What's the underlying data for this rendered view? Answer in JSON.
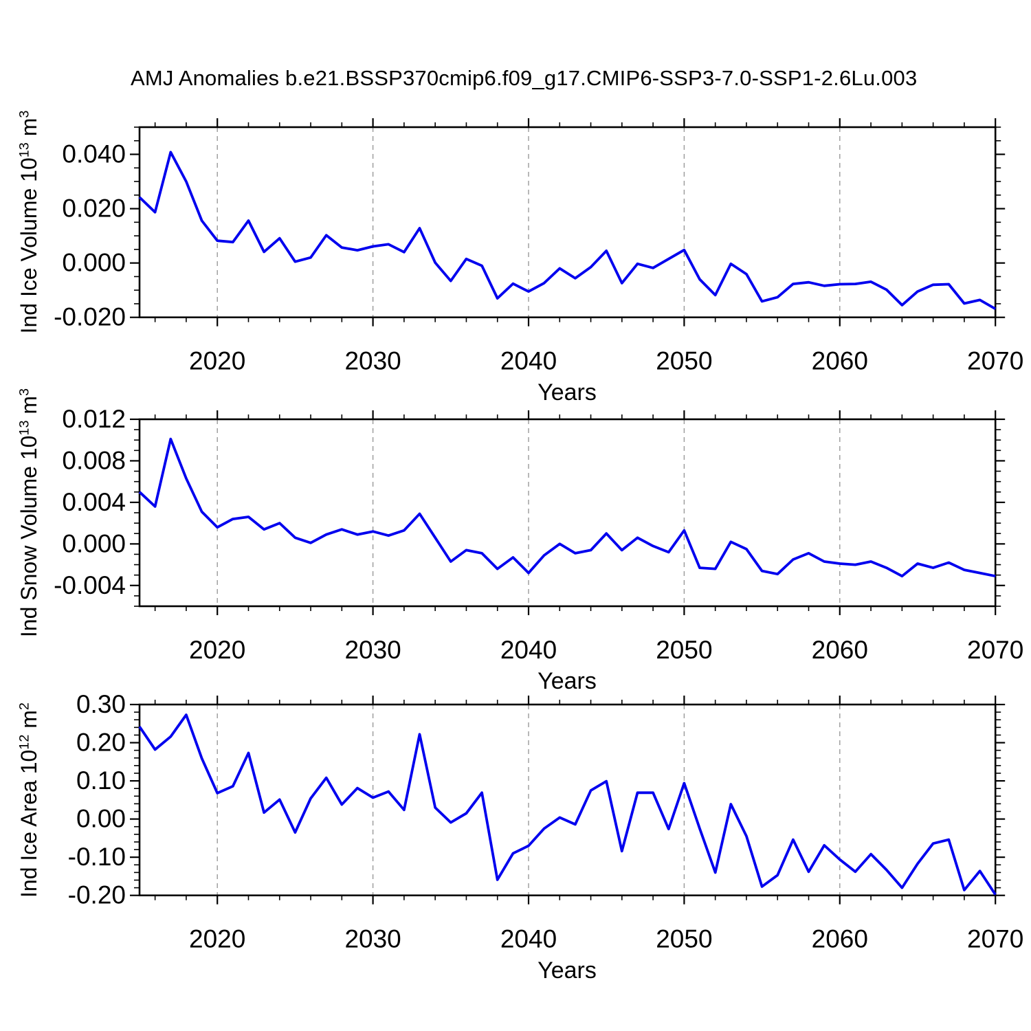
{
  "title": "AMJ Anomalies b.e21.BSSP370cmip6.f09_g17.CMIP6-SSP3-7.0-SSP1-2.6Lu.003",
  "line_color": "#0000EE",
  "grid_color": "#999999",
  "axis_color": "#000000",
  "chart_data": [
    {
      "type": "line",
      "name": "ind-ice-volume",
      "ylabel": {
        "prefix": "Ind Ice Volume 10",
        "exp": "13",
        "unit": " m",
        "unit_exp": "3"
      },
      "xlabel": "Years",
      "x_start": 2015,
      "x_end": 2070,
      "x_step": 1,
      "ylim": [
        -0.02,
        0.05
      ],
      "yticks": [
        {
          "v": 0.04,
          "label": "0.040"
        },
        {
          "v": 0.02,
          "label": "0.020"
        },
        {
          "v": 0.0,
          "label": "0.000"
        },
        {
          "v": -0.02,
          "label": "-0.020"
        }
      ],
      "ytick_minor_step": 0.005,
      "xticks": [
        {
          "v": 2020,
          "label": "2020"
        },
        {
          "v": 2030,
          "label": "2030"
        },
        {
          "v": 2040,
          "label": "2040"
        },
        {
          "v": 2050,
          "label": "2050"
        },
        {
          "v": 2060,
          "label": "2060"
        },
        {
          "v": 2070,
          "label": "2070"
        }
      ],
      "xtick_minor_step": 2,
      "grid_years": [
        2020,
        2030,
        2040,
        2050,
        2060
      ],
      "grid_on": true,
      "legend": "none",
      "values": [
        0.0242,
        0.0187,
        0.0408,
        0.03,
        0.0156,
        0.0082,
        0.0077,
        0.0156,
        0.0041,
        0.0091,
        0.0005,
        0.002,
        0.0102,
        0.0057,
        0.0047,
        0.0061,
        0.0069,
        0.004,
        0.0128,
        0.0001,
        -0.0066,
        0.0015,
        -0.001,
        -0.013,
        -0.0076,
        -0.0105,
        -0.0074,
        -0.002,
        -0.0056,
        -0.0015,
        0.0045,
        -0.0074,
        -0.0003,
        -0.0018,
        0.0015,
        0.0048,
        -0.006,
        -0.0118,
        -0.0003,
        -0.0041,
        -0.0141,
        -0.0126,
        -0.0077,
        -0.0071,
        -0.0084,
        -0.0078,
        -0.0077,
        -0.0069,
        -0.0098,
        -0.0155,
        -0.0105,
        -0.008,
        -0.0078,
        -0.0149,
        -0.0136,
        -0.0169
      ]
    },
    {
      "type": "line",
      "name": "ind-snow-volume",
      "ylabel": {
        "prefix": "Ind Snow Volume 10",
        "exp": "13",
        "unit": " m",
        "unit_exp": "3"
      },
      "xlabel": "Years",
      "x_start": 2015,
      "x_end": 2070,
      "x_step": 1,
      "ylim": [
        -0.006,
        0.012
      ],
      "yticks": [
        {
          "v": 0.012,
          "label": "0.012"
        },
        {
          "v": 0.008,
          "label": "0.008"
        },
        {
          "v": 0.004,
          "label": "0.004"
        },
        {
          "v": 0.0,
          "label": "0.000"
        },
        {
          "v": -0.004,
          "label": "-0.004"
        }
      ],
      "ytick_minor_step": 0.001,
      "xticks": [
        {
          "v": 2020,
          "label": "2020"
        },
        {
          "v": 2030,
          "label": "2030"
        },
        {
          "v": 2040,
          "label": "2040"
        },
        {
          "v": 2050,
          "label": "2050"
        },
        {
          "v": 2060,
          "label": "2060"
        },
        {
          "v": 2070,
          "label": "2070"
        }
      ],
      "xtick_minor_step": 2,
      "grid_years": [
        2020,
        2030,
        2040,
        2050,
        2060
      ],
      "grid_on": true,
      "legend": "none",
      "values": [
        0.005,
        0.0036,
        0.0101,
        0.0063,
        0.0031,
        0.0016,
        0.0024,
        0.0026,
        0.0014,
        0.002,
        0.0006,
        0.0001,
        0.0009,
        0.0014,
        0.0009,
        0.0012,
        0.0008,
        0.0013,
        0.0029,
        0.0006,
        -0.0017,
        -0.0006,
        -0.0009,
        -0.0024,
        -0.0013,
        -0.0028,
        -0.0011,
        0.0,
        -0.0009,
        -0.0006,
        0.001,
        -0.0006,
        0.0006,
        -0.0002,
        -0.0008,
        0.0013,
        -0.0023,
        -0.0024,
        0.0002,
        -0.0005,
        -0.0026,
        -0.0029,
        -0.0015,
        -0.0009,
        -0.0017,
        -0.0019,
        -0.002,
        -0.0017,
        -0.0023,
        -0.0031,
        -0.0019,
        -0.0023,
        -0.0018,
        -0.0025,
        -0.0028,
        -0.0031
      ]
    },
    {
      "type": "line",
      "name": "ind-ice-area",
      "ylabel": {
        "prefix": "Ind Ice Area 10",
        "exp": "12",
        "unit": " m",
        "unit_exp": "2"
      },
      "xlabel": "Years",
      "x_start": 2015,
      "x_end": 2070,
      "x_step": 1,
      "ylim": [
        -0.2,
        0.3
      ],
      "yticks": [
        {
          "v": 0.3,
          "label": "0.30"
        },
        {
          "v": 0.2,
          "label": "0.20"
        },
        {
          "v": 0.1,
          "label": "0.10"
        },
        {
          "v": 0.0,
          "label": "0.00"
        },
        {
          "v": -0.1,
          "label": "-0.10"
        },
        {
          "v": -0.2,
          "label": "-0.20"
        }
      ],
      "ytick_minor_step": 0.02,
      "xticks": [
        {
          "v": 2020,
          "label": "2020"
        },
        {
          "v": 2030,
          "label": "2030"
        },
        {
          "v": 2040,
          "label": "2040"
        },
        {
          "v": 2050,
          "label": "2050"
        },
        {
          "v": 2060,
          "label": "2060"
        },
        {
          "v": 2070,
          "label": "2070"
        }
      ],
      "xtick_minor_step": 2,
      "grid_years": [
        2020,
        2030,
        2040,
        2050,
        2060
      ],
      "grid_on": true,
      "legend": "none",
      "values": [
        0.242,
        0.182,
        0.216,
        0.273,
        0.159,
        0.068,
        0.086,
        0.173,
        0.017,
        0.051,
        -0.035,
        0.054,
        0.108,
        0.038,
        0.081,
        0.056,
        0.072,
        0.024,
        0.222,
        0.03,
        -0.009,
        0.015,
        0.069,
        -0.159,
        -0.09,
        -0.07,
        -0.025,
        0.004,
        -0.014,
        0.075,
        0.099,
        -0.084,
        0.069,
        0.069,
        -0.026,
        0.094,
        -0.025,
        -0.14,
        0.039,
        -0.045,
        -0.177,
        -0.147,
        -0.054,
        -0.138,
        -0.069,
        -0.106,
        -0.138,
        -0.092,
        -0.133,
        -0.18,
        -0.117,
        -0.064,
        -0.054,
        -0.186,
        -0.136,
        -0.198
      ]
    }
  ]
}
